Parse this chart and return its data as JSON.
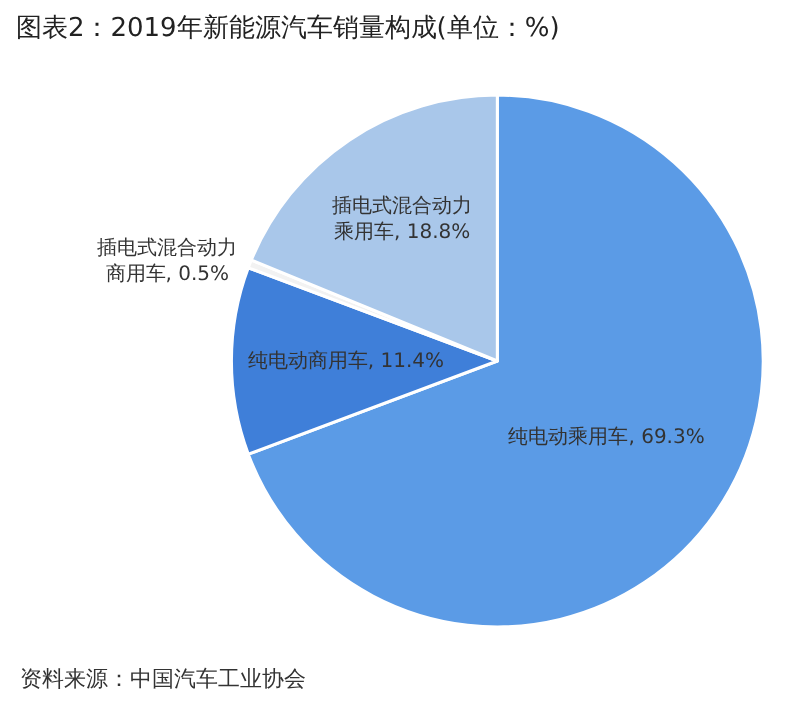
{
  "chart_data": {
    "type": "pie",
    "title": "图表2：2019年新能源汽车销量构成(单位：%)",
    "categories": [
      "纯电动乘用车",
      "纯电动商用车",
      "插电式混合动力商用车",
      "插电式混合动力乘用车"
    ],
    "values": [
      69.3,
      11.4,
      0.5,
      18.8
    ],
    "value_labels": [
      "69.3%",
      "11.4%",
      "0.5%",
      "18.8%"
    ],
    "colors": [
      "#5b9be6",
      "#3f7fd9",
      "#f2f2f2",
      "#a9c7ea"
    ],
    "annotations": [
      "资料来源：中国汽车工业协会"
    ],
    "legend": false
  }
}
